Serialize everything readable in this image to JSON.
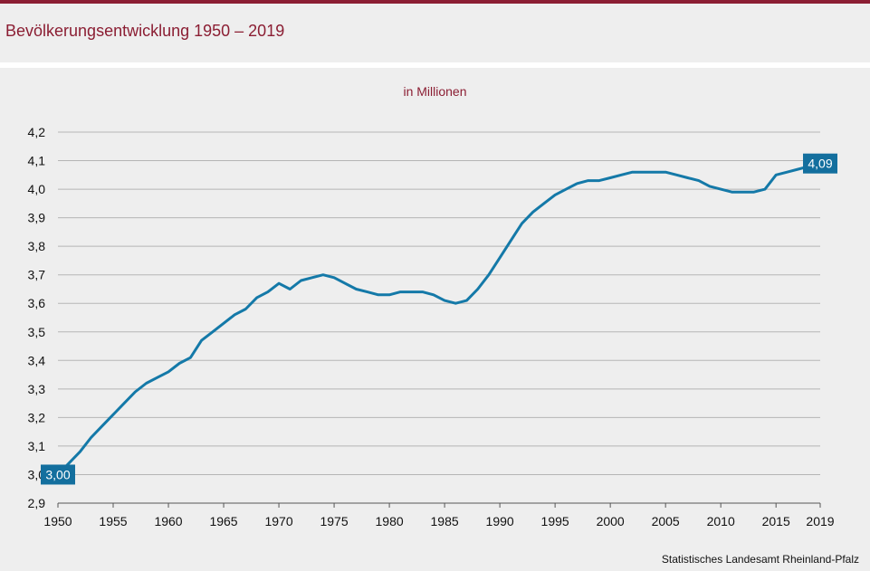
{
  "header": {
    "title": "Bevölkerungsentwicklung 1950 – 2019"
  },
  "colors": {
    "accent": "#8b1e33",
    "line": "#1479a8",
    "grid": "#b5b5b5",
    "label_bg": "#136f9e"
  },
  "footer": {
    "source": "Statistisches Landesamt Rheinland-Pfalz"
  },
  "chart_data": {
    "type": "line",
    "title": "Bevölkerungsentwicklung 1950 – 2019",
    "subtitle": "in Millionen",
    "xlabel": "",
    "ylabel": "",
    "xlim": [
      1950,
      2019
    ],
    "ylim": [
      2.9,
      4.2
    ],
    "grid": true,
    "x_ticks": [
      1950,
      1955,
      1960,
      1965,
      1970,
      1975,
      1980,
      1985,
      1990,
      1995,
      2000,
      2005,
      2010,
      2015,
      2019
    ],
    "y_ticks": [
      "2,9",
      "3,0",
      "3,1",
      "3,2",
      "3,3",
      "3,4",
      "3,5",
      "3,6",
      "3,7",
      "3,8",
      "3,9",
      "4,0",
      "4,1",
      "4,2"
    ],
    "y_tick_values": [
      2.9,
      3.0,
      3.1,
      3.2,
      3.3,
      3.4,
      3.5,
      3.6,
      3.7,
      3.8,
      3.9,
      4.0,
      4.1,
      4.2
    ],
    "series": [
      {
        "x": [
          1950,
          1951,
          1952,
          1953,
          1954,
          1955,
          1956,
          1957,
          1958,
          1959,
          1960,
          1961,
          1962,
          1963,
          1964,
          1965,
          1966,
          1967,
          1968,
          1969,
          1970,
          1971,
          1972,
          1973,
          1974,
          1975,
          1976,
          1977,
          1978,
          1979,
          1980,
          1981,
          1982,
          1983,
          1984,
          1985,
          1986,
          1987,
          1988,
          1989,
          1990,
          1991,
          1992,
          1993,
          1994,
          1995,
          1996,
          1997,
          1998,
          1999,
          2000,
          2001,
          2002,
          2003,
          2004,
          2005,
          2006,
          2007,
          2008,
          2009,
          2010,
          2011,
          2012,
          2013,
          2014,
          2015,
          2016,
          2017,
          2018,
          2019
        ],
        "values": [
          3.0,
          3.04,
          3.08,
          3.13,
          3.17,
          3.21,
          3.25,
          3.29,
          3.32,
          3.34,
          3.36,
          3.39,
          3.41,
          3.47,
          3.5,
          3.53,
          3.56,
          3.58,
          3.62,
          3.64,
          3.67,
          3.65,
          3.68,
          3.69,
          3.7,
          3.69,
          3.67,
          3.65,
          3.64,
          3.63,
          3.63,
          3.64,
          3.64,
          3.64,
          3.63,
          3.61,
          3.6,
          3.61,
          3.65,
          3.7,
          3.76,
          3.82,
          3.88,
          3.92,
          3.95,
          3.98,
          4.0,
          4.02,
          4.03,
          4.03,
          4.04,
          4.05,
          4.06,
          4.06,
          4.06,
          4.06,
          4.05,
          4.04,
          4.03,
          4.01,
          4.0,
          3.99,
          3.99,
          3.99,
          4.0,
          4.05,
          4.06,
          4.07,
          4.08,
          4.09
        ]
      }
    ],
    "annotations": [
      {
        "x": 1950,
        "y": 3.0,
        "text": "3,00"
      },
      {
        "x": 2019,
        "y": 4.09,
        "text": "4,09"
      }
    ]
  }
}
